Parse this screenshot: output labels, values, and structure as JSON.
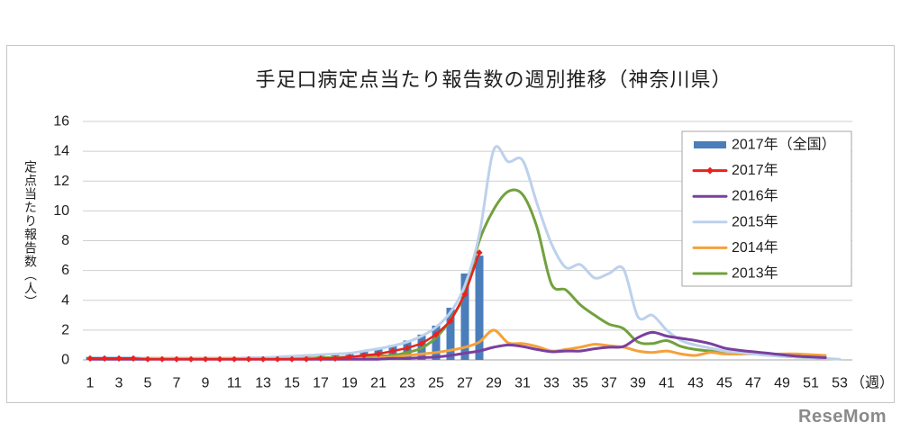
{
  "chart_data": {
    "type": "line",
    "title": "手足口病定点当たり報告数の週別推移（神奈川県）",
    "xlabel": "（週）",
    "ylabel": "定点当たり報告数（人）",
    "x": [
      1,
      2,
      3,
      4,
      5,
      6,
      7,
      8,
      9,
      10,
      11,
      12,
      13,
      14,
      15,
      16,
      17,
      18,
      19,
      20,
      21,
      22,
      23,
      24,
      25,
      26,
      27,
      28,
      29,
      30,
      31,
      32,
      33,
      34,
      35,
      36,
      37,
      38,
      39,
      40,
      41,
      42,
      43,
      44,
      45,
      46,
      47,
      48,
      49,
      50,
      51,
      52,
      53
    ],
    "x_tick_labels": [
      "1",
      "3",
      "5",
      "7",
      "9",
      "11",
      "13",
      "15",
      "17",
      "19",
      "21",
      "23",
      "25",
      "27",
      "29",
      "31",
      "33",
      "35",
      "37",
      "39",
      "41",
      "43",
      "45",
      "47",
      "49",
      "51",
      "53"
    ],
    "y_ticks": [
      0,
      2,
      4,
      6,
      8,
      10,
      12,
      14,
      16
    ],
    "xlim": [
      1,
      53
    ],
    "ylim": [
      0,
      16
    ],
    "grid": true,
    "legend": "top-right",
    "series": [
      {
        "name": "2017年（全国）",
        "type": "bar",
        "color": "#4a7ebb",
        "values": [
          0.2,
          0.2,
          0.2,
          0.2,
          0.2,
          0.15,
          0.15,
          0.15,
          0.15,
          0.15,
          0.15,
          0.15,
          0.15,
          0.2,
          0.2,
          0.25,
          0.3,
          0.35,
          0.45,
          0.6,
          0.8,
          1.0,
          1.3,
          1.7,
          2.3,
          3.5,
          5.8,
          7.0,
          null,
          null,
          null,
          null,
          null,
          null,
          null,
          null,
          null,
          null,
          null,
          null,
          null,
          null,
          null,
          null,
          null,
          null,
          null,
          null,
          null,
          null,
          null,
          null,
          null
        ]
      },
      {
        "name": "2017年",
        "type": "line",
        "marker": "diamond",
        "color": "#e8231f",
        "values": [
          0.1,
          0.1,
          0.1,
          0.1,
          0.05,
          0.05,
          0.05,
          0.05,
          0.05,
          0.05,
          0.05,
          0.05,
          0.05,
          0.05,
          0.05,
          0.05,
          0.1,
          0.1,
          0.2,
          0.3,
          0.4,
          0.6,
          0.8,
          1.1,
          1.7,
          2.6,
          4.4,
          7.2,
          null,
          null,
          null,
          null,
          null,
          null,
          null,
          null,
          null,
          null,
          null,
          null,
          null,
          null,
          null,
          null,
          null,
          null,
          null,
          null,
          null,
          null,
          null,
          null,
          null
        ]
      },
      {
        "name": "2016年",
        "type": "line",
        "color": "#7a3f9e",
        "values": [
          0.05,
          0.05,
          0.05,
          0.05,
          0.05,
          0.05,
          0.05,
          0.05,
          0.05,
          0.05,
          0.05,
          0.05,
          0.05,
          0.05,
          0.05,
          0.05,
          0.05,
          0.05,
          0.05,
          0.05,
          0.05,
          0.1,
          0.1,
          0.15,
          0.2,
          0.3,
          0.45,
          0.6,
          0.85,
          1.0,
          0.9,
          0.7,
          0.55,
          0.6,
          0.6,
          0.75,
          0.85,
          0.9,
          1.5,
          1.85,
          1.6,
          1.45,
          1.3,
          1.1,
          0.8,
          0.65,
          0.55,
          0.45,
          0.35,
          0.25,
          0.2,
          0.15,
          null
        ]
      },
      {
        "name": "2015年",
        "type": "line",
        "color": "#bdd1ec",
        "values": [
          0.15,
          0.15,
          0.15,
          0.15,
          0.1,
          0.1,
          0.1,
          0.1,
          0.1,
          0.1,
          0.1,
          0.15,
          0.15,
          0.2,
          0.25,
          0.3,
          0.35,
          0.4,
          0.45,
          0.6,
          0.75,
          0.95,
          1.2,
          1.6,
          2.2,
          3.2,
          5.0,
          8.4,
          14.1,
          13.3,
          13.4,
          10.5,
          7.8,
          6.2,
          6.4,
          5.5,
          5.8,
          6.1,
          2.9,
          3.0,
          2.0,
          1.3,
          1.0,
          0.8,
          0.6,
          0.5,
          0.4,
          0.3,
          0.25,
          0.2,
          0.15,
          0.1,
          0.05
        ]
      },
      {
        "name": "2014年",
        "type": "line",
        "color": "#f4a13a",
        "values": [
          0.1,
          0.1,
          0.1,
          0.1,
          0.1,
          0.1,
          0.1,
          0.1,
          0.1,
          0.1,
          0.1,
          0.1,
          0.1,
          0.1,
          0.1,
          0.1,
          0.1,
          0.1,
          0.1,
          0.1,
          0.15,
          0.2,
          0.3,
          0.4,
          0.5,
          0.65,
          0.85,
          1.2,
          2.0,
          1.15,
          1.1,
          0.9,
          0.6,
          0.7,
          0.85,
          1.05,
          0.95,
          0.85,
          0.6,
          0.5,
          0.6,
          0.4,
          0.3,
          0.5,
          0.4,
          0.4,
          0.4,
          0.35,
          0.4,
          0.4,
          0.35,
          0.3,
          null
        ]
      },
      {
        "name": "2013年",
        "type": "line",
        "color": "#72a13d",
        "values": [
          0.1,
          0.1,
          0.1,
          0.1,
          0.1,
          0.1,
          0.1,
          0.1,
          0.1,
          0.1,
          0.1,
          0.1,
          0.1,
          0.1,
          0.1,
          0.1,
          0.15,
          0.15,
          0.2,
          0.2,
          0.25,
          0.3,
          0.5,
          0.8,
          1.5,
          2.7,
          4.5,
          8.0,
          10.1,
          11.3,
          11.1,
          8.9,
          5.1,
          4.7,
          3.7,
          3.0,
          2.4,
          2.1,
          1.2,
          1.1,
          1.3,
          0.9,
          0.7,
          0.6,
          0.45,
          0.4,
          0.45,
          0.35,
          0.25,
          0.2,
          0.15,
          0.2,
          null
        ]
      }
    ]
  },
  "watermark": "ReseMom"
}
